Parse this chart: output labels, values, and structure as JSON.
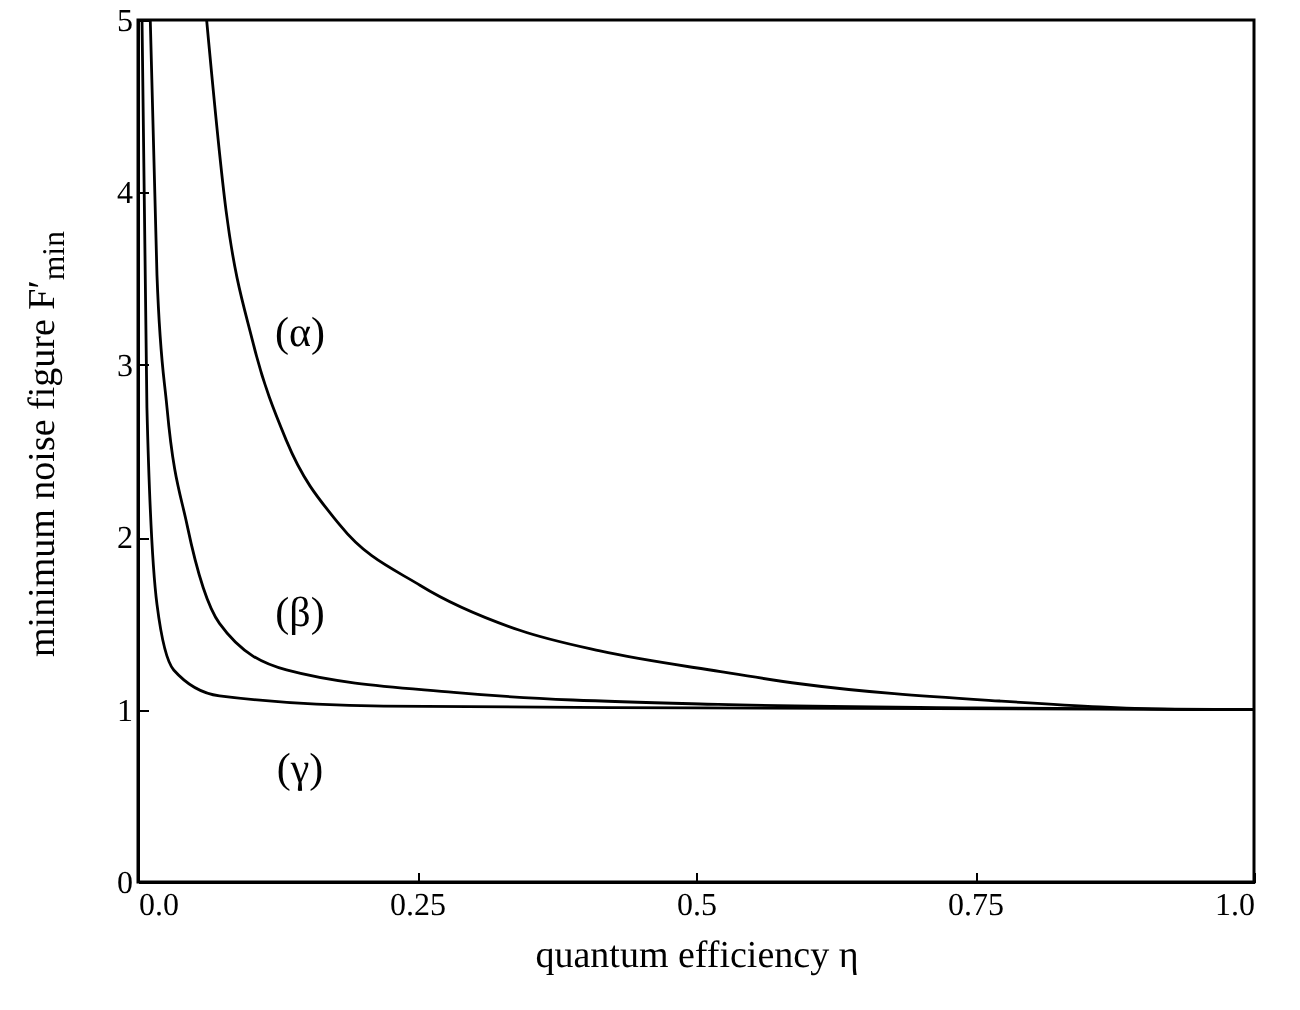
{
  "chart_data": {
    "type": "line",
    "xlabel": "quantum efficiency η",
    "ylabel": "minimum noise figure F′$_{min}$",
    "xlim": [
      0,
      1
    ],
    "ylim": [
      0,
      5
    ],
    "xticks": [
      {
        "value": 0,
        "label": "0.0"
      },
      0.25,
      0.5,
      0.75,
      {
        "value": 1,
        "label": "1.0"
      }
    ],
    "yticks": [
      0,
      1,
      2,
      3,
      4,
      5
    ],
    "grid": false,
    "marker": "none",
    "line_style": "solid",
    "series": [
      {
        "name": "(α)",
        "color": "#000000",
        "x": [
          0.0615,
          0.079,
          0.103,
          0.133,
          0.181,
          0.253,
          0.342,
          0.414,
          0.522,
          0.593,
          0.772,
          0.95,
          1.0
        ],
        "values": [
          5,
          3.89,
          3.13,
          2.56,
          2.07,
          1.72,
          1.46,
          1.34,
          1.22,
          1.15,
          1.05,
          1.0,
          1.0
        ]
      },
      {
        "name": "(β)",
        "color": "#000000",
        "x": [
          0.011,
          0.017,
          0.026,
          0.044,
          0.073,
          0.133,
          0.283,
          0.52,
          0.75,
          1.0
        ],
        "values": [
          5,
          3.52,
          2.75,
          2.07,
          1.5,
          1.23,
          1.1,
          1.03,
          1.01,
          1.0
        ]
      },
      {
        "name": "(γ)",
        "color": "#000000",
        "x": [
          0.0036,
          0.008,
          0.017,
          0.032,
          0.073,
          0.22,
          0.5,
          1.0
        ],
        "values": [
          5,
          2.75,
          1.61,
          1.23,
          1.08,
          1.02,
          1.01,
          1.0
        ]
      }
    ]
  }
}
